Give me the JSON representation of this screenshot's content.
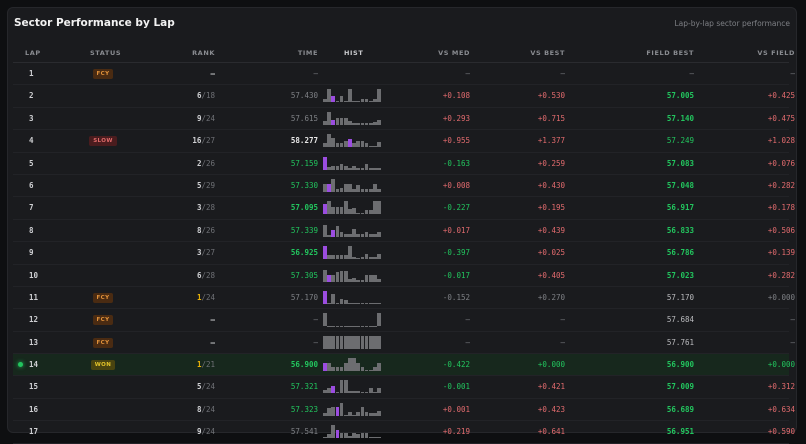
{
  "title": "Sector Performance by Lap",
  "subtitle": "Lap-by-lap sector performance",
  "columns": {
    "lap": "LAP",
    "status": "STATUS",
    "rank": "RANK",
    "time": "TIME",
    "hist": "HIST",
    "vs_med": "VS MED",
    "vs_best": "VS BEST",
    "field_best": "FIELD BEST",
    "vs_field": "VS FIELD"
  },
  "colors": {
    "positive": "#22c55e",
    "negative": "#e26b6e",
    "highlight": "#9b4de0",
    "gold": "#eab308"
  },
  "rows": [
    {
      "lap": "1",
      "status": "FCY",
      "rank": "–",
      "rank_den": "",
      "time": "–",
      "time_style": "gray",
      "hist": [],
      "hist_hi": -1,
      "vs_med": "–",
      "vs_med_c": "gry",
      "vs_best": "–",
      "vs_best_c": "gry",
      "field_best": "–",
      "field_best_c": "gry",
      "vs_field": "–",
      "vs_field_c": "gry"
    },
    {
      "lap": "2",
      "status": "",
      "rank": "6",
      "rank_den": "/18",
      "time": "57.430",
      "time_style": "gray",
      "hist": [
        0.3,
        1,
        0.5,
        0.1,
        0.5,
        0.1,
        1,
        0.1,
        0.1,
        0.3,
        0.3,
        0.1,
        0.3,
        1
      ],
      "hist_hi": 2,
      "vs_med": "+0.108",
      "vs_med_c": "red",
      "vs_best": "+0.530",
      "vs_best_c": "red",
      "field_best": "57.005",
      "field_best_c": "grnb",
      "vs_field": "+0.425",
      "vs_field_c": "red"
    },
    {
      "lap": "3",
      "status": "",
      "rank": "9",
      "rank_den": "/24",
      "time": "57.615",
      "time_style": "gray",
      "hist": [
        0.3,
        1,
        0.4,
        0.5,
        0.5,
        0.5,
        0.3,
        0.1,
        0.1,
        0.1,
        0.1,
        0.1,
        0.2,
        0.4
      ],
      "hist_hi": 2,
      "vs_med": "+0.293",
      "vs_med_c": "red",
      "vs_best": "+0.715",
      "vs_best_c": "red",
      "field_best": "57.140",
      "field_best_c": "grnb",
      "vs_field": "+0.475",
      "vs_field_c": "red"
    },
    {
      "lap": "4",
      "status": "SLOW",
      "rank": "16",
      "rank_den": "/27",
      "time": "58.277",
      "time_style": "white-bold",
      "hist": [
        0.3,
        1,
        0.7,
        0.3,
        0.3,
        0.5,
        0.6,
        0.3,
        0.5,
        0.5,
        0.3,
        0.1,
        0.1,
        0.4
      ],
      "hist_hi": 6,
      "vs_med": "+0.955",
      "vs_med_c": "red",
      "vs_best": "+1.377",
      "vs_best_c": "red",
      "field_best": "57.249",
      "field_best_c": "grn",
      "vs_field": "+1.028",
      "vs_field_c": "red"
    },
    {
      "lap": "5",
      "status": "",
      "rank": "2",
      "rank_den": "/26",
      "time": "57.159",
      "time_style": "green",
      "hist": [
        1,
        0.2,
        0.3,
        0.3,
        0.4,
        0.3,
        0.1,
        0.3,
        0.1,
        0.1,
        0.4,
        0.1,
        0.1,
        0.1
      ],
      "hist_hi": 0,
      "vs_med": "-0.163",
      "vs_med_c": "grn",
      "vs_best": "+0.259",
      "vs_best_c": "red",
      "field_best": "57.083",
      "field_best_c": "grnb",
      "vs_field": "+0.076",
      "vs_field_c": "red"
    },
    {
      "lap": "6",
      "status": "",
      "rank": "5",
      "rank_den": "/29",
      "time": "57.330",
      "time_style": "green",
      "hist": [
        0.6,
        0.6,
        1,
        0.2,
        0.3,
        0.6,
        0.6,
        0.2,
        0.5,
        0.2,
        0.2,
        0.2,
        0.6,
        0.2
      ],
      "hist_hi": 1,
      "vs_med": "+0.008",
      "vs_med_c": "red",
      "vs_best": "+0.430",
      "vs_best_c": "red",
      "field_best": "57.048",
      "field_best_c": "grnb",
      "vs_field": "+0.282",
      "vs_field_c": "red"
    },
    {
      "lap": "7",
      "status": "",
      "rank": "3",
      "rank_den": "/28",
      "time": "57.095",
      "time_style": "green-bold",
      "hist": [
        0.8,
        1,
        0.6,
        0.6,
        0.6,
        1,
        0.4,
        0.5,
        0.1,
        0.1,
        0.3,
        0.3,
        1,
        1
      ],
      "hist_hi": 0,
      "vs_med": "-0.227",
      "vs_med_c": "grn",
      "vs_best": "+0.195",
      "vs_best_c": "red",
      "field_best": "56.917",
      "field_best_c": "grnb",
      "vs_field": "+0.178",
      "vs_field_c": "red"
    },
    {
      "lap": "8",
      "status": "",
      "rank": "8",
      "rank_den": "/26",
      "time": "57.339",
      "time_style": "green",
      "hist": [
        0.9,
        0.1,
        0.5,
        0.8,
        0.4,
        0.2,
        0.2,
        0.6,
        0.2,
        0.2,
        0.4,
        0.2,
        0.2,
        0.4
      ],
      "hist_hi": 2,
      "vs_med": "+0.017",
      "vs_med_c": "red",
      "vs_best": "+0.439",
      "vs_best_c": "red",
      "field_best": "56.833",
      "field_best_c": "grnb",
      "vs_field": "+0.506",
      "vs_field_c": "red"
    },
    {
      "lap": "9",
      "status": "",
      "rank": "3",
      "rank_den": "/27",
      "time": "56.925",
      "time_style": "green-bold",
      "hist": [
        1,
        0.3,
        0.3,
        0.3,
        0.3,
        0.3,
        1,
        0.2,
        0.1,
        0.2,
        0.4,
        0.2,
        0.2,
        0.4
      ],
      "hist_hi": 0,
      "vs_med": "-0.397",
      "vs_med_c": "grn",
      "vs_best": "+0.025",
      "vs_best_c": "red",
      "field_best": "56.786",
      "field_best_c": "grnb",
      "vs_field": "+0.139",
      "vs_field_c": "red"
    },
    {
      "lap": "10",
      "status": "",
      "rank": "6",
      "rank_den": "/28",
      "time": "57.305",
      "time_style": "green",
      "hist": [
        0.9,
        0.5,
        0.5,
        0.7,
        0.8,
        0.8,
        0.2,
        0.3,
        0.1,
        0.1,
        0.5,
        0.5,
        0.5,
        0.2
      ],
      "hist_hi": 1,
      "vs_med": "-0.017",
      "vs_med_c": "grn",
      "vs_best": "+0.405",
      "vs_best_c": "red",
      "field_best": "57.023",
      "field_best_c": "grnb",
      "vs_field": "+0.282",
      "vs_field_c": "red"
    },
    {
      "lap": "11",
      "status": "FCY",
      "rank": "1",
      "rank_gold": true,
      "rank_den": "/24",
      "time": "57.170",
      "time_style": "gray",
      "hist": [
        1,
        0.1,
        0.8,
        0.1,
        0.4,
        0.3,
        0.1,
        0.1,
        0.1,
        0.1,
        0.1,
        0.1,
        0.1,
        0.1
      ],
      "hist_hi": 0,
      "vs_med": "-0.152",
      "vs_med_c": "gry",
      "vs_best": "+0.270",
      "vs_best_c": "gry",
      "field_best": "57.170",
      "field_best_c": "lt",
      "vs_field": "+0.000",
      "vs_field_c": "gry"
    },
    {
      "lap": "12",
      "status": "FCY",
      "rank": "–",
      "rank_den": "",
      "time": "–",
      "time_style": "gray",
      "hist": [
        1,
        0.05,
        0.05,
        0.05,
        0.05,
        0.05,
        0.05,
        0.05,
        0.05,
        0.05,
        0.05,
        0.05,
        0.05,
        1
      ],
      "hist_hi": -1,
      "vs_med": "–",
      "vs_med_c": "gry",
      "vs_best": "–",
      "vs_best_c": "gry",
      "field_best": "57.684",
      "field_best_c": "lt",
      "vs_field": "–",
      "vs_field_c": "gry"
    },
    {
      "lap": "13",
      "status": "FCY",
      "rank": "–",
      "rank_den": "",
      "time": "–",
      "time_style": "gray",
      "hist": [
        1,
        1,
        1,
        1,
        1,
        1,
        1,
        1,
        1,
        1,
        1,
        1,
        1,
        1
      ],
      "hist_hi": -1,
      "vs_med": "–",
      "vs_med_c": "gry",
      "vs_best": "–",
      "vs_best_c": "gry",
      "field_best": "57.761",
      "field_best_c": "lt",
      "vs_field": "–",
      "vs_field_c": "gry"
    },
    {
      "lap": "14",
      "status": "WON",
      "current": true,
      "rank": "1",
      "rank_gold": true,
      "rank_den": "/21",
      "time": "56.900",
      "time_style": "green-bold",
      "hist": [
        0.6,
        0.6,
        0.3,
        0.3,
        0.3,
        0.6,
        1,
        1,
        0.6,
        0.3,
        0.1,
        0.1,
        0.3,
        0.6
      ],
      "hist_hi": 0,
      "vs_med": "-0.422",
      "vs_med_c": "grn",
      "vs_best": "+0.000",
      "vs_best_c": "grn",
      "field_best": "56.900",
      "field_best_c": "grnb",
      "vs_field": "+0.000",
      "vs_field_c": "grn"
    },
    {
      "lap": "15",
      "status": "",
      "rank": "5",
      "rank_den": "/24",
      "time": "57.321",
      "time_style": "green",
      "hist": [
        0.3,
        0.4,
        0.6,
        0.1,
        1,
        1,
        0.2,
        0.2,
        0.2,
        0.1,
        0.1,
        0.4,
        0.1,
        0.4
      ],
      "hist_hi": 2,
      "vs_med": "-0.001",
      "vs_med_c": "grn",
      "vs_best": "+0.421",
      "vs_best_c": "red",
      "field_best": "57.009",
      "field_best_c": "grnb",
      "vs_field": "+0.312",
      "vs_field_c": "red"
    },
    {
      "lap": "16",
      "status": "",
      "rank": "8",
      "rank_den": "/24",
      "time": "57.323",
      "time_style": "green",
      "hist": [
        0.2,
        0.6,
        0.7,
        0.7,
        1,
        0.1,
        0.3,
        0.1,
        0.3,
        0.7,
        0.3,
        0.2,
        0.2,
        0.4
      ],
      "hist_hi": 3,
      "vs_med": "+0.001",
      "vs_med_c": "red",
      "vs_best": "+0.423",
      "vs_best_c": "red",
      "field_best": "56.689",
      "field_best_c": "grnb",
      "vs_field": "+0.634",
      "vs_field_c": "red"
    },
    {
      "lap": "17",
      "status": "",
      "rank": "9",
      "rank_den": "/24",
      "time": "57.541",
      "time_style": "gray",
      "hist": [
        0.1,
        0.3,
        1,
        0.6,
        0.4,
        0.4,
        0.2,
        0.4,
        0.3,
        0.4,
        0.4,
        0.1,
        0.1,
        0.1
      ],
      "hist_hi": 3,
      "vs_med": "+0.219",
      "vs_med_c": "red",
      "vs_best": "+0.641",
      "vs_best_c": "red",
      "field_best": "56.951",
      "field_best_c": "grnb",
      "vs_field": "+0.590",
      "vs_field_c": "red"
    }
  ]
}
